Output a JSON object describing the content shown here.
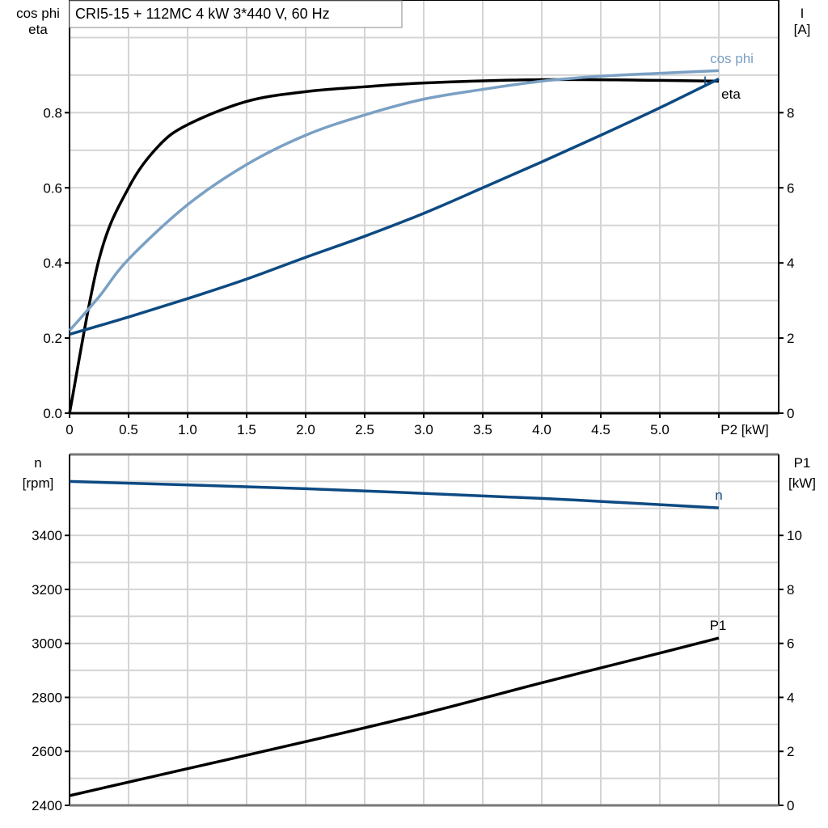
{
  "title": "CRI5-15 + 112MC   4 kW   3*440 V, 60 Hz",
  "colors": {
    "eta": "#000000",
    "cos_phi": "#7aa0c4",
    "I": "#0d4a82",
    "n": "#0d4a82",
    "P1": "#000000",
    "grid": "#d4d4d4"
  },
  "chart_data": [
    {
      "type": "line",
      "x_ticks": [
        "0",
        "0.5",
        "1.0",
        "1.5",
        "2.0",
        "2.5",
        "3.0",
        "3.5",
        "4.0",
        "4.5",
        "5.0"
      ],
      "xlabel": "P2 [kW]",
      "xlim": [
        0,
        6
      ],
      "ylabel_left": [
        "cos phi",
        "eta"
      ],
      "ylim_left": [
        0,
        1.1
      ],
      "y_ticks_left": [
        "0.0",
        "0.2",
        "0.4",
        "0.6",
        "0.8"
      ],
      "ylabel_right": [
        "I",
        "[A]"
      ],
      "ylim_right": [
        0,
        11
      ],
      "y_ticks_right": [
        "0",
        "2",
        "4",
        "6",
        "8"
      ],
      "grid": true,
      "series": [
        {
          "name": "eta",
          "axis": "left",
          "x": [
            0,
            0.25,
            0.5,
            0.75,
            1.0,
            1.5,
            2.0,
            2.5,
            3.0,
            4.0,
            5.0,
            5.5
          ],
          "y": [
            0,
            0.41,
            0.6,
            0.71,
            0.768,
            0.83,
            0.856,
            0.869,
            0.879,
            0.888,
            0.886,
            0.884
          ]
        },
        {
          "name": "cos phi",
          "axis": "left",
          "x": [
            0,
            0.25,
            0.5,
            1.0,
            1.5,
            2.0,
            2.5,
            3.0,
            3.5,
            4.0,
            4.5,
            5.0,
            5.5
          ],
          "y": [
            0.22,
            0.31,
            0.41,
            0.555,
            0.662,
            0.74,
            0.794,
            0.836,
            0.862,
            0.884,
            0.897,
            0.905,
            0.912
          ]
        },
        {
          "name": "I",
          "axis": "right",
          "x": [
            0,
            0.5,
            1.0,
            1.5,
            2.0,
            2.5,
            3.0,
            3.5,
            4.0,
            4.5,
            5.0,
            5.5
          ],
          "y": [
            2.1,
            2.56,
            3.05,
            3.57,
            4.15,
            4.71,
            5.32,
            6.0,
            6.69,
            7.4,
            8.13,
            8.9
          ]
        }
      ]
    },
    {
      "type": "line",
      "xlim": [
        0,
        6
      ],
      "ylabel_left": [
        "n",
        "[rpm]"
      ],
      "ylim_left": [
        2400,
        3700
      ],
      "y_ticks_left": [
        "2400",
        "2600",
        "2800",
        "3000",
        "3200",
        "3400"
      ],
      "ylabel_right": [
        "P1",
        "[kW]"
      ],
      "ylim_right": [
        0,
        13
      ],
      "y_ticks_right": [
        "0",
        "2",
        "4",
        "6",
        "8",
        "10"
      ],
      "grid": true,
      "series": [
        {
          "name": "n",
          "axis": "left",
          "x": [
            0,
            2.0,
            4.0,
            5.5
          ],
          "y": [
            3600,
            3573,
            3537,
            3502
          ]
        },
        {
          "name": "P1",
          "axis": "right",
          "x": [
            0,
            1.0,
            2.0,
            3.0,
            4.0,
            5.0,
            5.5
          ],
          "y": [
            0.36,
            1.36,
            2.36,
            3.4,
            4.54,
            5.64,
            6.2
          ]
        }
      ]
    }
  ]
}
